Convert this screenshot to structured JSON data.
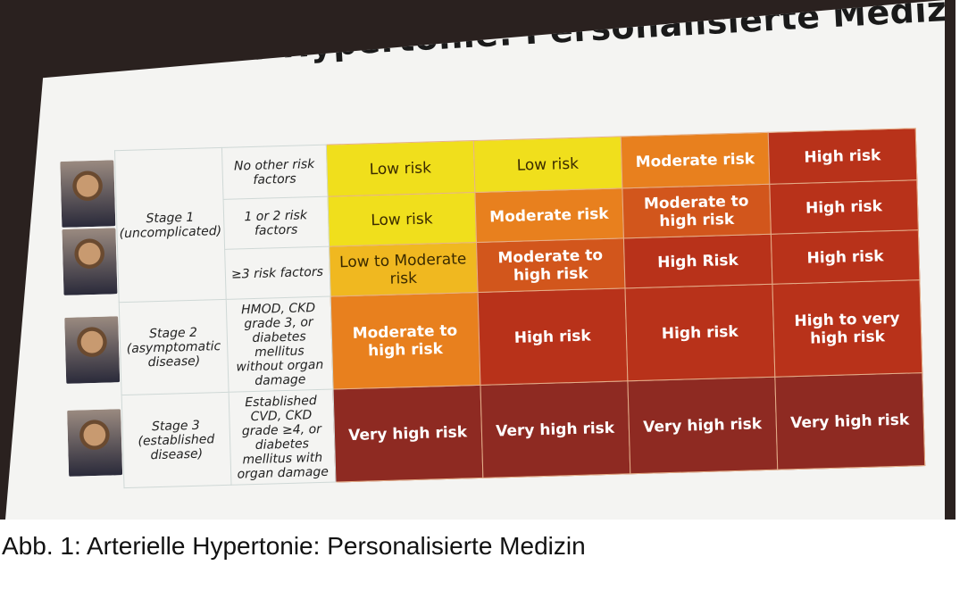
{
  "title": "Arterielle Hypertonie: Personalisierte Medizin",
  "caption": "Abb. 1: Arterielle Hypertonie: Personalisierte Medizin",
  "colors": {
    "low": "#f0df1c",
    "low_mod": "#f0b820",
    "moderate": "#e8801e",
    "mod_high": "#d2561c",
    "high": "#b8321a",
    "very_high": "#8e2a22"
  },
  "rows": [
    {
      "stage": "Stage 1 (uncomplicated)",
      "factor": "No other risk factors",
      "cells": [
        [
          "Low risk",
          "low"
        ],
        [
          "Low risk",
          "low"
        ],
        [
          "Moderate risk",
          "moderate"
        ],
        [
          "High risk",
          "high"
        ]
      ]
    },
    {
      "factor": "1 or 2 risk factors",
      "cells": [
        [
          "Low risk",
          "low"
        ],
        [
          "Moderate risk",
          "moderate"
        ],
        [
          "Moderate to high risk",
          "mod_high"
        ],
        [
          "High risk",
          "high"
        ]
      ]
    },
    {
      "factor": "≥3 risk factors",
      "cells": [
        [
          "Low to Moderate risk",
          "low_mod"
        ],
        [
          "Moderate to high risk",
          "mod_high"
        ],
        [
          "High Risk",
          "high"
        ],
        [
          "High risk",
          "high"
        ]
      ]
    },
    {
      "stage": "Stage 2 (asymptomatic disease)",
      "factor": "HMOD, CKD grade 3, or diabetes mellitus without organ damage",
      "cells": [
        [
          "Moderate to high risk",
          "moderate"
        ],
        [
          "High risk",
          "high"
        ],
        [
          "High risk",
          "high"
        ],
        [
          "High to very high risk",
          "high"
        ]
      ]
    },
    {
      "stage": "Stage 3 (established disease)",
      "factor": "Established CVD, CKD grade ≥4, or diabetes mellitus with organ damage",
      "cells": [
        [
          "Very high risk",
          "very_high"
        ],
        [
          "Very high risk",
          "very_high"
        ],
        [
          "Very high risk",
          "very_high"
        ],
        [
          "Very high risk",
          "very_high"
        ]
      ]
    }
  ]
}
